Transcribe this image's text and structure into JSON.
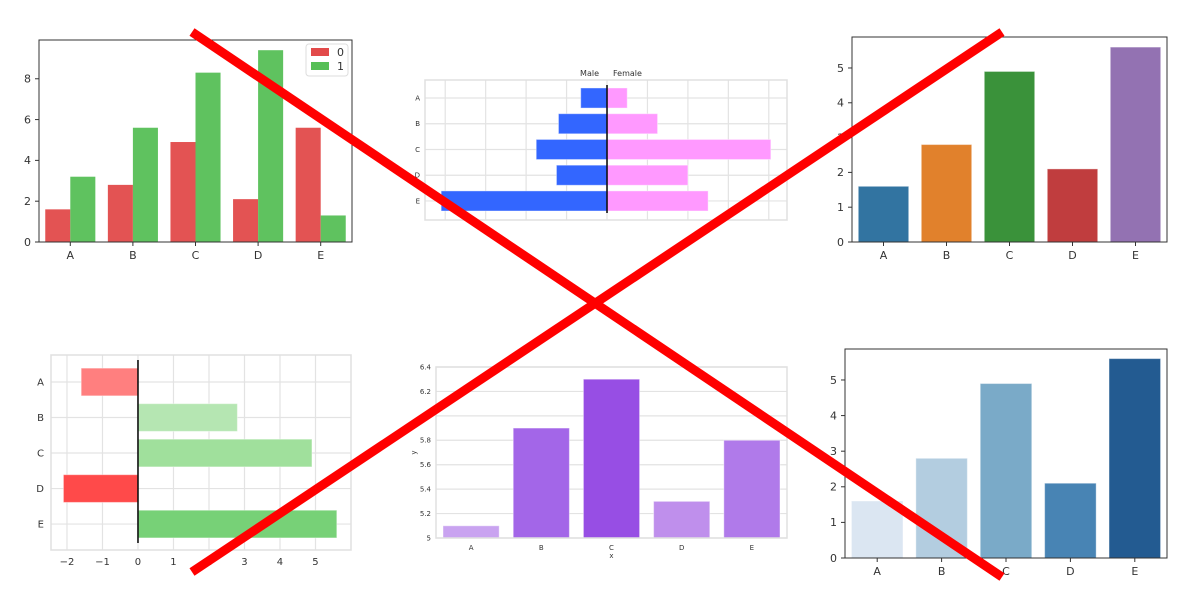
{
  "chart_data": [
    {
      "type": "bar",
      "subtype": "grouped",
      "categories": [
        "A",
        "B",
        "C",
        "D",
        "E"
      ],
      "series": [
        {
          "name": "0",
          "values": [
            1.6,
            2.8,
            4.9,
            2.1,
            5.6
          ],
          "color": "#e24a4a"
        },
        {
          "name": "1",
          "values": [
            3.2,
            5.6,
            8.3,
            9.4,
            1.3
          ],
          "color": "#56bf56"
        }
      ],
      "yticks": [
        0,
        2,
        4,
        6,
        8
      ],
      "ylim": [
        0,
        9.9
      ],
      "legend": "top-right",
      "grid": false,
      "xlabel": "",
      "ylabel": ""
    },
    {
      "type": "bar",
      "subtype": "population-pyramid",
      "orientation": "horizontal",
      "categories": [
        "A",
        "B",
        "C",
        "D",
        "E"
      ],
      "series": [
        {
          "name": "Male",
          "values": [
            -0.65,
            -1.2,
            -1.75,
            -1.25,
            -4.1
          ],
          "color": "#3366ff"
        },
        {
          "name": "Female",
          "values": [
            0.5,
            1.25,
            4.05,
            2.0,
            2.5
          ],
          "color": "#ff99ff"
        }
      ],
      "xlim": [
        -4.5,
        4.45
      ],
      "grid": true,
      "xlabel": "",
      "ylabel": ""
    },
    {
      "type": "bar",
      "categories": [
        "A",
        "B",
        "C",
        "D",
        "E"
      ],
      "values": [
        1.6,
        2.8,
        4.9,
        2.1,
        5.6
      ],
      "colors": [
        "#3274a1",
        "#e1812c",
        "#3a923a",
        "#c03d3e",
        "#9372b2"
      ],
      "yticks": [
        0,
        1,
        2,
        3,
        4,
        5
      ],
      "ylim": [
        0,
        5.89
      ],
      "grid": false,
      "xlabel": "",
      "ylabel": ""
    },
    {
      "type": "bar",
      "orientation": "horizontal",
      "categories": [
        "A",
        "B",
        "C",
        "D",
        "E"
      ],
      "values": [
        -1.6,
        2.8,
        4.9,
        -2.1,
        5.6
      ],
      "colors": [
        "#ff7f7f",
        "#b5e6b2",
        "#a0e09c",
        "#ff4a4a",
        "#77d177"
      ],
      "xticks": [
        -2,
        -1,
        0,
        1,
        2,
        3,
        4,
        5
      ],
      "xtick_labels": [
        "−2",
        "−1",
        "0",
        "1",
        "2",
        "3",
        "4",
        "5"
      ],
      "xlim": [
        -2.45,
        6.0
      ],
      "grid": true,
      "xlabel": "",
      "ylabel": ""
    },
    {
      "type": "bar",
      "categories": [
        "A",
        "B",
        "C",
        "D",
        "E"
      ],
      "values": [
        5.1,
        5.9,
        6.3,
        5.3,
        5.8
      ],
      "colors": [
        "#c9a3f0",
        "#a366e8",
        "#974ee4",
        "#bf8fec",
        "#b07aea"
      ],
      "yticks": [
        5,
        5.2,
        5.4,
        5.6,
        5.8,
        6,
        6.2,
        6.4
      ],
      "ytick_labels": [
        "5",
        "5.2",
        "5.4",
        "5.6",
        "5.8",
        "6",
        "6.2",
        "6.4"
      ],
      "ylim": [
        5,
        6.4
      ],
      "grid": true,
      "xlabel": "x",
      "ylabel": "y"
    },
    {
      "type": "bar",
      "categories": [
        "A",
        "B",
        "C",
        "D",
        "E"
      ],
      "values": [
        1.6,
        2.8,
        4.9,
        2.1,
        5.6
      ],
      "colors": [
        "#dbe6f2",
        "#b3cde0",
        "#7aaac8",
        "#4884b4",
        "#235b91"
      ],
      "yticks": [
        0,
        1,
        2,
        3,
        4,
        5
      ],
      "ylim": [
        0,
        5.87
      ],
      "grid": false,
      "xlabel": "",
      "ylabel": ""
    }
  ],
  "overlay": {
    "type": "cross-out",
    "color": "#ff0000"
  }
}
